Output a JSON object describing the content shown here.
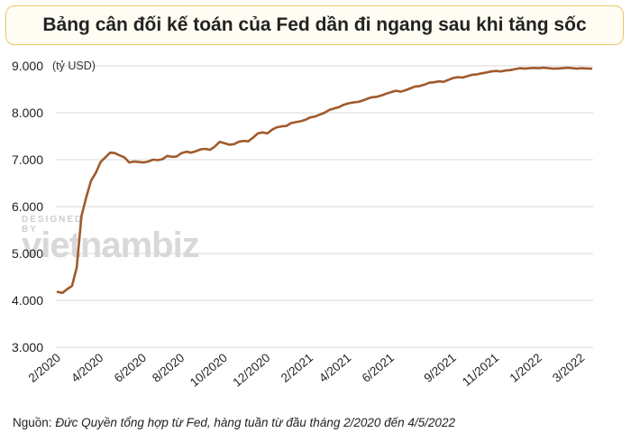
{
  "header": {
    "title": "Bảng cân đối kế toán của Fed dần đi ngang sau khi tăng sốc"
  },
  "watermark": {
    "small": "DESIGNED BY",
    "big": "vietnambiz"
  },
  "source": {
    "label": "Nguồn:",
    "text": "Đức Quyền tổng hợp từ Fed, hàng tuần từ đầu tháng 2/2020 đến 4/5/2022"
  },
  "colors": {
    "line": "#a05a2c",
    "grid": "#d9d9d9",
    "title_border": "#e6c76a"
  },
  "chart_data": {
    "type": "line",
    "unit_label": "(tỷ USD)",
    "ylim": [
      3000,
      9000
    ],
    "y_ticks": [
      3000,
      4000,
      5000,
      6000,
      7000,
      8000,
      9000
    ],
    "y_tick_labels": [
      "3.000",
      "4.000",
      "5.000",
      "6.000",
      "7.000",
      "8.000",
      "9.000"
    ],
    "x_tick_labels": [
      "2/2020",
      "4/2020",
      "6/2020",
      "8/2020",
      "10/2020",
      "12/2020",
      "2/2021",
      "4/2021",
      "6/2021",
      "9/2021",
      "11/2021",
      "1/2022",
      "3/2022"
    ],
    "x_tick_weeks": [
      0,
      9,
      18,
      26,
      35,
      44,
      53,
      61,
      70,
      83,
      92,
      101,
      110
    ],
    "grid": "horizontal",
    "series": [
      {
        "values": [
          4180,
          4160,
          4240,
          4310,
          4700,
          5800,
          6200,
          6550,
          6720,
          6950,
          7050,
          7150,
          7140,
          7090,
          7050,
          6940,
          6960,
          6950,
          6940,
          6960,
          7000,
          6990,
          7010,
          7080,
          7060,
          7070,
          7140,
          7170,
          7150,
          7180,
          7220,
          7230,
          7210,
          7280,
          7380,
          7350,
          7320,
          7330,
          7380,
          7400,
          7390,
          7470,
          7560,
          7580,
          7560,
          7640,
          7690,
          7710,
          7720,
          7780,
          7800,
          7820,
          7850,
          7900,
          7920,
          7960,
          8000,
          8060,
          8090,
          8120,
          8170,
          8200,
          8220,
          8230,
          8260,
          8300,
          8330,
          8340,
          8370,
          8410,
          8440,
          8470,
          8450,
          8480,
          8520,
          8560,
          8570,
          8600,
          8640,
          8650,
          8670,
          8660,
          8700,
          8740,
          8760,
          8750,
          8780,
          8810,
          8820,
          8840,
          8860,
          8880,
          8890,
          8880,
          8900,
          8910,
          8930,
          8950,
          8940,
          8950,
          8955,
          8950,
          8960,
          8950,
          8940,
          8945,
          8950,
          8960,
          8950,
          8940,
          8950,
          8945,
          8940
        ]
      }
    ]
  }
}
